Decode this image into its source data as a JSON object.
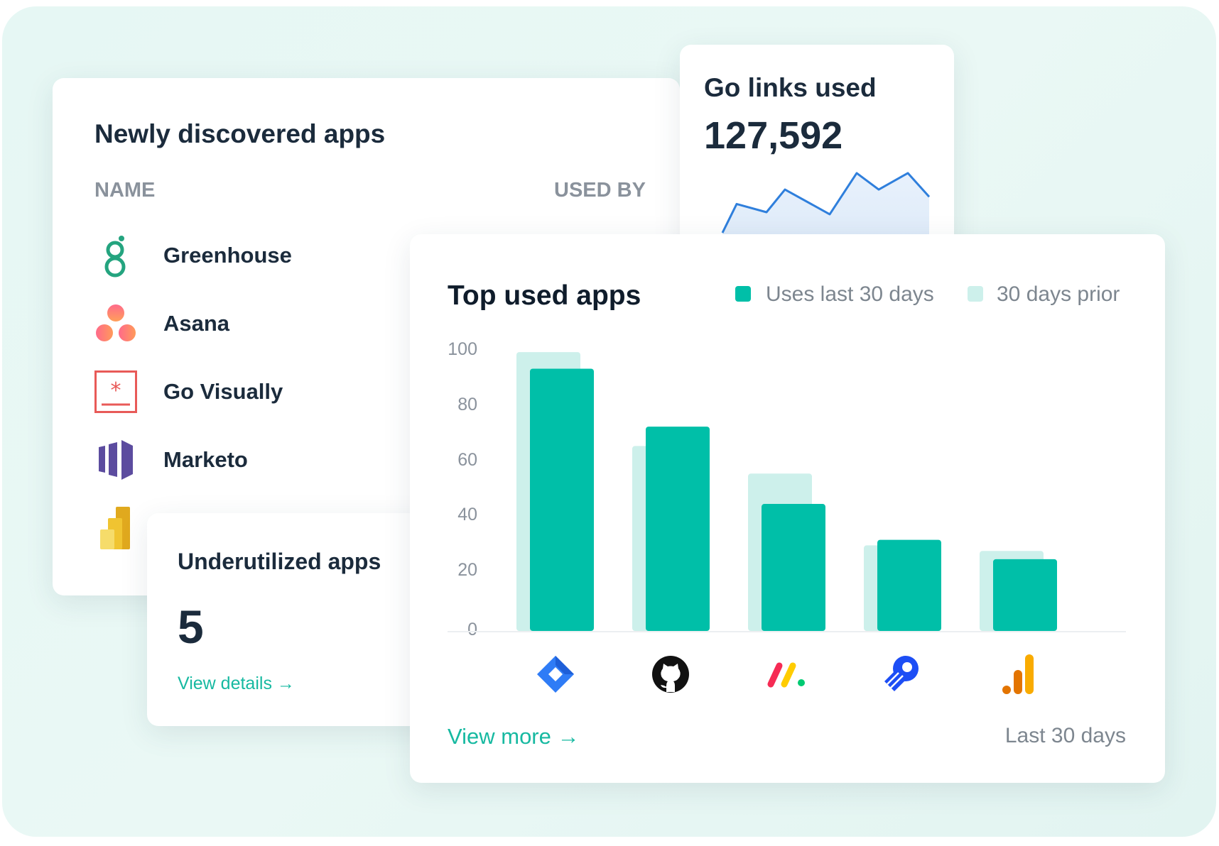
{
  "newly_discovered": {
    "title": "Newly discovered apps",
    "col_name": "NAME",
    "col_used_by": "USED BY",
    "apps": [
      {
        "name": "Greenhouse",
        "icon": "greenhouse-logo"
      },
      {
        "name": "Asana",
        "icon": "asana-logo"
      },
      {
        "name": "Go Visually",
        "icon": "govisually-logo"
      },
      {
        "name": "Marketo",
        "icon": "marketo-logo"
      },
      {
        "name": "",
        "icon": "powerbi-logo"
      }
    ]
  },
  "go_links": {
    "title": "Go links used",
    "value": "127,592",
    "line_color": "#2f7fdc",
    "sparkline": [
      0,
      28,
      20,
      42,
      18,
      58,
      42,
      58,
      35
    ]
  },
  "underutilized": {
    "title": "Underutilized apps",
    "value": "5",
    "link": "View details →"
  },
  "top_used": {
    "title": "Top used apps",
    "view_more": "View more →",
    "period": "Last 30 days"
  },
  "chart_data": {
    "type": "bar",
    "title": "Top used apps",
    "categories": [
      "Jira",
      "GitHub",
      "monday.com",
      "Outreach",
      "Google Analytics"
    ],
    "category_icons": [
      "jira-icon",
      "github-icon",
      "monday-icon",
      "outreach-icon",
      "google-analytics-icon"
    ],
    "series": [
      {
        "name": "Uses last 30 days",
        "color": "#00bfa8",
        "values": [
          95,
          74,
          46,
          33,
          26
        ]
      },
      {
        "name": "30 days prior",
        "color": "#cdf0eb",
        "values": [
          101,
          67,
          57,
          31,
          29
        ]
      }
    ],
    "yticks": [
      "100",
      "80",
      "60",
      "40",
      "20",
      "0"
    ],
    "ylim": [
      0,
      100
    ],
    "legend": "top-right",
    "grid": false
  }
}
